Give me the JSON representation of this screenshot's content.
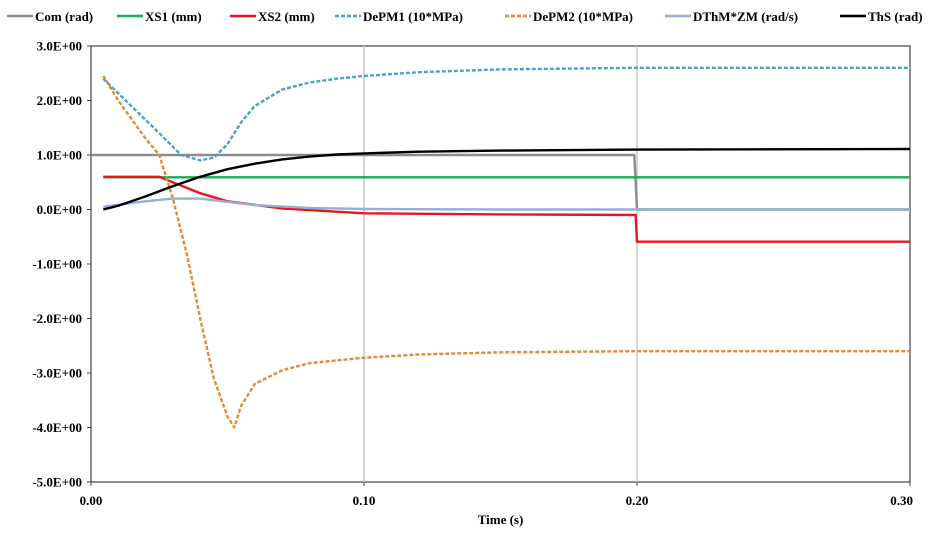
{
  "chart_data": {
    "type": "line",
    "title": "",
    "xlabel": "Time (s)",
    "ylabel": "",
    "xlim": [
      0.0,
      0.3
    ],
    "ylim": [
      -5.0,
      3.0
    ],
    "xticks": [
      0.0,
      0.1,
      0.2,
      0.3
    ],
    "xtick_labels": [
      "0.00",
      "0.10",
      "0.20",
      "0.30"
    ],
    "yticks": [
      3,
      2,
      1,
      0,
      -1,
      -2,
      -3,
      -4,
      -5
    ],
    "ytick_labels": [
      "3.0E+00",
      "2.0E+00",
      "1.0E+00",
      "0.0E+00",
      "-1.0E+00",
      "-2.0E+00",
      "-3.0E+00",
      "-4.0E+00",
      "-5.0E+00"
    ],
    "grid": {
      "vertical": true,
      "horizontal": false
    },
    "legend_position": "top",
    "series": [
      {
        "name": "Com (rad)",
        "color": "#8c8c8c",
        "dash": "solid",
        "x": [
          0.0,
          0.0045,
          0.199,
          0.2,
          0.3
        ],
        "y": [
          1.0,
          1.0,
          1.0,
          0.0,
          0.0
        ]
      },
      {
        "name": "XS1 (mm)",
        "color": "#1ea85a",
        "dash": "solid",
        "x": [
          0.0045,
          0.3
        ],
        "y": [
          0.59,
          0.59
        ]
      },
      {
        "name": "XS2 (mm)",
        "color": "#e8151c",
        "dash": "solid",
        "x": [
          0.0045,
          0.025,
          0.03,
          0.04,
          0.05,
          0.07,
          0.1,
          0.15,
          0.1995,
          0.2,
          0.3
        ],
        "y": [
          0.6,
          0.6,
          0.5,
          0.3,
          0.15,
          0.02,
          -0.07,
          -0.09,
          -0.1,
          -0.59,
          -0.59
        ]
      },
      {
        "name": "DePM1 (10*MPa)",
        "color": "#4aa3bf",
        "dash": "dashed",
        "x": [
          0.0045,
          0.025,
          0.033,
          0.04,
          0.045,
          0.05,
          0.055,
          0.06,
          0.07,
          0.08,
          0.09,
          0.1,
          0.12,
          0.15,
          0.2,
          0.3
        ],
        "y": [
          2.4,
          1.4,
          1.0,
          0.9,
          0.95,
          1.2,
          1.6,
          1.9,
          2.2,
          2.33,
          2.4,
          2.45,
          2.52,
          2.57,
          2.6,
          2.6
        ]
      },
      {
        "name": "DePM2 (10*MPa)",
        "color": "#e28a3a",
        "dash": "dashed",
        "x": [
          0.0045,
          0.01,
          0.02,
          0.025,
          0.03,
          0.035,
          0.04,
          0.045,
          0.05,
          0.0525,
          0.055,
          0.06,
          0.07,
          0.08,
          0.1,
          0.12,
          0.15,
          0.2,
          0.3
        ],
        "y": [
          2.45,
          2.0,
          1.3,
          1.0,
          0.2,
          -0.8,
          -2.0,
          -3.1,
          -3.8,
          -4.0,
          -3.6,
          -3.2,
          -2.95,
          -2.82,
          -2.72,
          -2.66,
          -2.62,
          -2.6,
          -2.6
        ]
      },
      {
        "name": "DThM*ZM (rad/s)",
        "color": "#95b0d6",
        "dash": "solid",
        "x": [
          0.0045,
          0.02,
          0.03,
          0.04,
          0.05,
          0.06,
          0.08,
          0.1,
          0.15,
          0.3
        ],
        "y": [
          0.05,
          0.15,
          0.2,
          0.2,
          0.14,
          0.08,
          0.03,
          0.01,
          0.0,
          0.0
        ]
      },
      {
        "name": "ThS (rad)",
        "color": "#000000",
        "dash": "solid",
        "x": [
          0.0045,
          0.01,
          0.02,
          0.03,
          0.04,
          0.05,
          0.06,
          0.07,
          0.08,
          0.09,
          0.1,
          0.12,
          0.15,
          0.2,
          0.3
        ],
        "y": [
          0.0,
          0.07,
          0.24,
          0.43,
          0.6,
          0.74,
          0.84,
          0.92,
          0.97,
          1.01,
          1.03,
          1.06,
          1.08,
          1.1,
          1.11
        ]
      }
    ]
  }
}
